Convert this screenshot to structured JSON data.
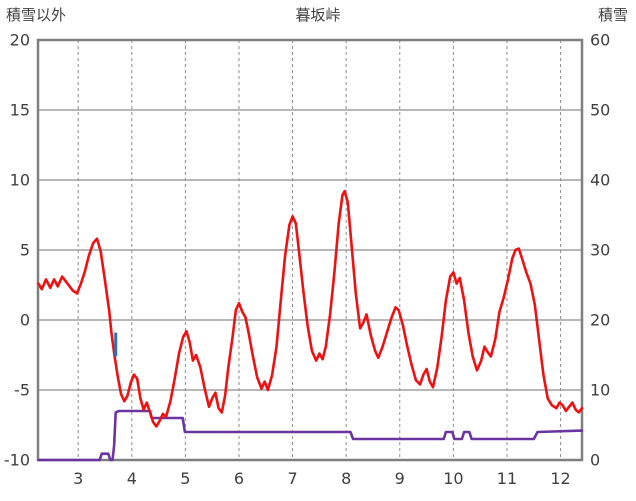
{
  "header": {
    "left_axis_title": "積雪以外",
    "chart_title": "暮坂峠",
    "right_axis_title": "積雪"
  },
  "chart_data": {
    "type": "line",
    "title": "暮坂峠",
    "background": "#ffffff",
    "grid": {
      "horizontal": "solid",
      "vertical": "dashed",
      "grid_color": "#8c8c8c",
      "border_color": "#7f7f7f"
    },
    "x_axis": {
      "label": "",
      "range": [
        2.25,
        12.4
      ],
      "ticks": [
        3,
        4,
        5,
        6,
        7,
        8,
        9,
        10,
        11,
        12
      ]
    },
    "y_axis_left": {
      "label": "積雪以外",
      "range": [
        -10,
        20
      ],
      "ticks": [
        20,
        15,
        10,
        5,
        0,
        -5,
        -10
      ]
    },
    "y_axis_right": {
      "label": "積雪",
      "range": [
        0,
        60
      ],
      "ticks": [
        60,
        50,
        40,
        30,
        20,
        10,
        0
      ]
    },
    "series": [
      {
        "name": "snow-depth",
        "axis": "right",
        "type": "line",
        "color": "#6a35a0",
        "width": 2.6,
        "points": [
          [
            2.26,
            0
          ],
          [
            3.4,
            0
          ],
          [
            3.44,
            0.9
          ],
          [
            3.56,
            0.9
          ],
          [
            3.6,
            0
          ],
          [
            3.64,
            0
          ],
          [
            3.67,
            2.0
          ],
          [
            3.7,
            6.8
          ],
          [
            3.76,
            7.0
          ],
          [
            4.34,
            7.0
          ],
          [
            4.37,
            6.0
          ],
          [
            4.95,
            6.0
          ],
          [
            4.99,
            4.0
          ],
          [
            8.08,
            4.0
          ],
          [
            8.13,
            3.0
          ],
          [
            9.82,
            3.0
          ],
          [
            9.86,
            4.0
          ],
          [
            9.98,
            4.0
          ],
          [
            10.02,
            3.0
          ],
          [
            10.16,
            3.0
          ],
          [
            10.2,
            4.0
          ],
          [
            10.3,
            4.0
          ],
          [
            10.34,
            3.0
          ],
          [
            11.5,
            3.0
          ],
          [
            11.57,
            4.0
          ],
          [
            12.4,
            4.2
          ]
        ]
      },
      {
        "name": "temperature",
        "axis": "left",
        "type": "line",
        "color": "#ee1111",
        "width": 2.6,
        "points": [
          [
            2.26,
            2.6
          ],
          [
            2.32,
            2.2
          ],
          [
            2.4,
            2.9
          ],
          [
            2.48,
            2.3
          ],
          [
            2.55,
            2.9
          ],
          [
            2.62,
            2.4
          ],
          [
            2.7,
            3.1
          ],
          [
            2.8,
            2.6
          ],
          [
            2.9,
            2.1
          ],
          [
            2.98,
            1.9
          ],
          [
            3.05,
            2.6
          ],
          [
            3.12,
            3.4
          ],
          [
            3.2,
            4.6
          ],
          [
            3.28,
            5.5
          ],
          [
            3.35,
            5.8
          ],
          [
            3.42,
            4.9
          ],
          [
            3.5,
            2.8
          ],
          [
            3.58,
            0.6
          ],
          [
            3.62,
            -0.9
          ],
          [
            3.68,
            -2.6
          ],
          [
            3.74,
            -4.1
          ],
          [
            3.8,
            -5.3
          ],
          [
            3.86,
            -5.8
          ],
          [
            3.92,
            -5.4
          ],
          [
            3.98,
            -4.5
          ],
          [
            4.04,
            -3.9
          ],
          [
            4.1,
            -4.2
          ],
          [
            4.16,
            -5.6
          ],
          [
            4.22,
            -6.4
          ],
          [
            4.28,
            -5.9
          ],
          [
            4.34,
            -6.6
          ],
          [
            4.4,
            -7.3
          ],
          [
            4.46,
            -7.6
          ],
          [
            4.52,
            -7.2
          ],
          [
            4.58,
            -6.7
          ],
          [
            4.64,
            -6.9
          ],
          [
            4.72,
            -5.8
          ],
          [
            4.8,
            -4.2
          ],
          [
            4.88,
            -2.4
          ],
          [
            4.96,
            -1.2
          ],
          [
            5.02,
            -0.8
          ],
          [
            5.08,
            -1.6
          ],
          [
            5.14,
            -2.9
          ],
          [
            5.2,
            -2.5
          ],
          [
            5.28,
            -3.4
          ],
          [
            5.36,
            -4.9
          ],
          [
            5.44,
            -6.2
          ],
          [
            5.5,
            -5.6
          ],
          [
            5.56,
            -5.2
          ],
          [
            5.62,
            -6.3
          ],
          [
            5.68,
            -6.6
          ],
          [
            5.74,
            -5.4
          ],
          [
            5.8,
            -3.4
          ],
          [
            5.88,
            -1.2
          ],
          [
            5.94,
            0.7
          ],
          [
            6.0,
            1.2
          ],
          [
            6.06,
            0.6
          ],
          [
            6.12,
            0.2
          ],
          [
            6.18,
            -0.9
          ],
          [
            6.26,
            -2.6
          ],
          [
            6.34,
            -4.1
          ],
          [
            6.42,
            -4.9
          ],
          [
            6.48,
            -4.4
          ],
          [
            6.54,
            -5.0
          ],
          [
            6.62,
            -3.9
          ],
          [
            6.7,
            -1.9
          ],
          [
            6.78,
            1.4
          ],
          [
            6.86,
            4.6
          ],
          [
            6.94,
            6.8
          ],
          [
            7.0,
            7.4
          ],
          [
            7.06,
            6.9
          ],
          [
            7.12,
            4.9
          ],
          [
            7.2,
            2.1
          ],
          [
            7.28,
            -0.4
          ],
          [
            7.36,
            -2.2
          ],
          [
            7.44,
            -2.9
          ],
          [
            7.5,
            -2.4
          ],
          [
            7.56,
            -2.8
          ],
          [
            7.62,
            -1.9
          ],
          [
            7.7,
            0.4
          ],
          [
            7.78,
            3.4
          ],
          [
            7.86,
            6.9
          ],
          [
            7.93,
            8.9
          ],
          [
            7.97,
            9.2
          ],
          [
            8.03,
            8.4
          ],
          [
            8.1,
            5.4
          ],
          [
            8.18,
            1.9
          ],
          [
            8.26,
            -0.6
          ],
          [
            8.32,
            -0.2
          ],
          [
            8.38,
            0.4
          ],
          [
            8.46,
            -1.1
          ],
          [
            8.54,
            -2.2
          ],
          [
            8.6,
            -2.7
          ],
          [
            8.68,
            -1.9
          ],
          [
            8.76,
            -0.9
          ],
          [
            8.84,
            0.1
          ],
          [
            8.92,
            0.9
          ],
          [
            8.98,
            0.7
          ],
          [
            9.06,
            -0.4
          ],
          [
            9.14,
            -1.9
          ],
          [
            9.22,
            -3.2
          ],
          [
            9.3,
            -4.3
          ],
          [
            9.38,
            -4.6
          ],
          [
            9.44,
            -3.9
          ],
          [
            9.5,
            -3.5
          ],
          [
            9.56,
            -4.4
          ],
          [
            9.62,
            -4.8
          ],
          [
            9.7,
            -3.4
          ],
          [
            9.78,
            -1.2
          ],
          [
            9.86,
            1.4
          ],
          [
            9.94,
            3.1
          ],
          [
            10.0,
            3.4
          ],
          [
            10.06,
            2.6
          ],
          [
            10.12,
            3.0
          ],
          [
            10.2,
            1.4
          ],
          [
            10.28,
            -0.9
          ],
          [
            10.36,
            -2.6
          ],
          [
            10.44,
            -3.6
          ],
          [
            10.52,
            -2.9
          ],
          [
            10.58,
            -1.9
          ],
          [
            10.64,
            -2.3
          ],
          [
            10.7,
            -2.6
          ],
          [
            10.78,
            -1.4
          ],
          [
            10.86,
            0.6
          ],
          [
            10.94,
            1.6
          ],
          [
            11.02,
            2.9
          ],
          [
            11.1,
            4.4
          ],
          [
            11.16,
            5.0
          ],
          [
            11.22,
            5.1
          ],
          [
            11.28,
            4.4
          ],
          [
            11.36,
            3.4
          ],
          [
            11.44,
            2.6
          ],
          [
            11.52,
            1.1
          ],
          [
            11.6,
            -1.4
          ],
          [
            11.68,
            -3.9
          ],
          [
            11.76,
            -5.6
          ],
          [
            11.84,
            -6.1
          ],
          [
            11.92,
            -6.3
          ],
          [
            11.98,
            -5.9
          ],
          [
            12.04,
            -6.1
          ],
          [
            12.1,
            -6.5
          ],
          [
            12.16,
            -6.2
          ],
          [
            12.22,
            -5.9
          ],
          [
            12.28,
            -6.4
          ],
          [
            12.34,
            -6.6
          ],
          [
            12.4,
            -6.3
          ]
        ]
      },
      {
        "name": "precipitation-mark",
        "axis": "left",
        "type": "bar",
        "color": "#2e74b5",
        "width": 3,
        "points": [
          [
            3.7,
            -0.9
          ],
          [
            3.7,
            -2.6
          ]
        ]
      }
    ]
  }
}
